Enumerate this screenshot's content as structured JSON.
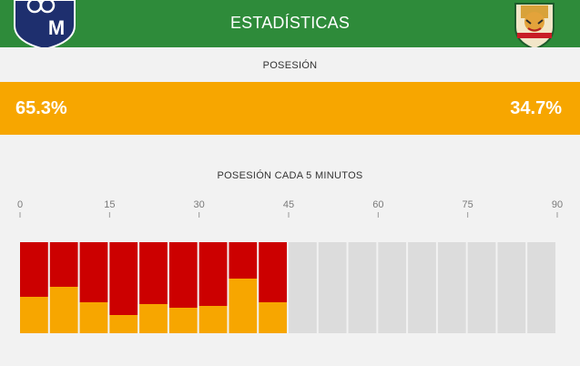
{
  "header": {
    "title": "ESTADÍSTICAS",
    "home_logo_text": "M",
    "colors": {
      "header_bg": "#2e8b3a"
    }
  },
  "possession": {
    "label": "POSESIÓN",
    "home_pct": "65.3%",
    "away_pct": "34.7%",
    "bar_color": "#f7a600"
  },
  "interval_section": {
    "label": "POSESIÓN CADA 5 MINUTOS"
  },
  "chart_data": {
    "type": "bar",
    "stacked": true,
    "title": "POSESIÓN CADA 5 MINUTOS",
    "xlabel": "",
    "ylabel": "",
    "x_ticks": [
      0,
      15,
      30,
      45,
      60,
      75,
      90
    ],
    "xlim": [
      0,
      90
    ],
    "ylim": [
      0,
      100
    ],
    "interval_minutes": 5,
    "categories": [
      "0-5",
      "5-10",
      "10-15",
      "15-20",
      "20-25",
      "25-30",
      "30-35",
      "35-40",
      "40-45",
      "45-50",
      "50-55",
      "55-60",
      "60-65",
      "65-70",
      "70-75",
      "75-80",
      "80-85",
      "85-90"
    ],
    "series": [
      {
        "color": "#cc0000",
        "values": [
          60,
          49,
          66,
          80,
          68,
          72,
          70,
          40,
          66,
          null,
          null,
          null,
          null,
          null,
          null,
          null,
          null,
          null
        ]
      },
      {
        "color": "#f7a600",
        "values": [
          40,
          51,
          34,
          20,
          32,
          28,
          30,
          60,
          34,
          null,
          null,
          null,
          null,
          null,
          null,
          null,
          null,
          null
        ]
      }
    ],
    "empty_color": "#dcdcdc",
    "grid": false
  }
}
